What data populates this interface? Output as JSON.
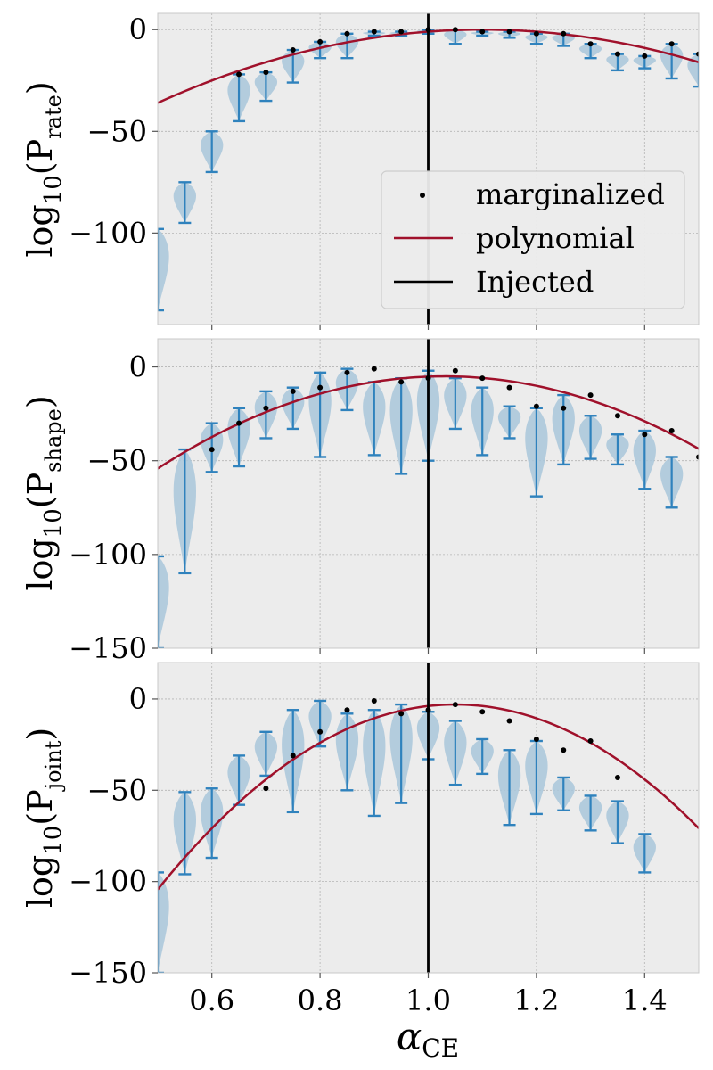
{
  "chart_data": {
    "type": "violin",
    "xlabel": "α",
    "xlabel_sub": "CE",
    "xlim": [
      0.5,
      1.5
    ],
    "xticks": [
      0.6,
      0.8,
      1.0,
      1.2,
      1.4
    ],
    "xtick_labels": [
      "0.6",
      "0.8",
      "1.0",
      "1.2",
      "1.4"
    ],
    "injected_x": 1.0,
    "x": [
      0.5,
      0.55,
      0.6,
      0.65,
      0.7,
      0.75,
      0.8,
      0.85,
      0.9,
      0.95,
      1.0,
      1.05,
      1.1,
      1.15,
      1.2,
      1.25,
      1.3,
      1.35,
      1.4,
      1.45,
      1.5
    ],
    "colors": {
      "violin_fill": "#a9c7db",
      "violin_line": "#2f82bd",
      "polynomial": "#a0112b",
      "injected": "#000000",
      "marker": "#000000",
      "panel_bg": "#ececec",
      "grid": "#b4b4b4"
    },
    "legend": {
      "position": "lower right of top panel",
      "entries": [
        {
          "label": "marginalized",
          "kind": "marker"
        },
        {
          "label": "polynomial",
          "kind": "line"
        },
        {
          "label": "Injected",
          "kind": "line"
        }
      ]
    },
    "panels": [
      {
        "ylabel": "log",
        "ylabel_base": "10",
        "ylabel_var": "P",
        "ylabel_var_sub": "rate",
        "ylim": [
          -145,
          8
        ],
        "yticks": [
          0,
          -50,
          -100
        ],
        "ytick_labels": [
          "0",
          "−50",
          "−100"
        ],
        "polynomial": {
          "peak_x": 1.1,
          "peak_y": 0,
          "curvature": 100
        },
        "marginalized": [
          null,
          null,
          null,
          -22,
          -21,
          -10,
          -6,
          -2,
          -1,
          -1,
          0,
          0,
          -1,
          -1,
          -2,
          -2,
          -7,
          -12,
          -13,
          -7,
          -12
        ],
        "violins": [
          {
            "min": -138,
            "max": -98,
            "width": 0.025
          },
          {
            "min": -95,
            "max": -75,
            "width": 0.025
          },
          {
            "min": -70,
            "max": -50,
            "width": 0.025
          },
          {
            "min": -45,
            "max": -22,
            "width": 0.025
          },
          {
            "min": -35,
            "max": -21,
            "width": 0.025
          },
          {
            "min": -26,
            "max": -10,
            "width": 0.025
          },
          {
            "min": -14,
            "max": -6,
            "width": 0.025
          },
          {
            "min": -14,
            "max": -2,
            "width": 0.025
          },
          {
            "min": -3,
            "max": -1,
            "width": 0.025
          },
          {
            "min": -3,
            "max": -1,
            "width": 0.025
          },
          {
            "min": -2,
            "max": 0,
            "width": 0.025
          },
          {
            "min": -7,
            "max": 0,
            "width": 0.025
          },
          {
            "min": -3,
            "max": -1,
            "width": 0.025
          },
          {
            "min": -4,
            "max": -1,
            "width": 0.025
          },
          {
            "min": -7,
            "max": -2,
            "width": 0.025
          },
          {
            "min": -8,
            "max": -2,
            "width": 0.025
          },
          {
            "min": -14,
            "max": -7,
            "width": 0.025
          },
          {
            "min": -20,
            "max": -12,
            "width": 0.025
          },
          {
            "min": -19,
            "max": -13,
            "width": 0.025
          },
          {
            "min": -24,
            "max": -7,
            "width": 0.025
          },
          {
            "min": -28,
            "max": -12,
            "width": 0.025
          }
        ]
      },
      {
        "ylabel": "log",
        "ylabel_base": "10",
        "ylabel_var": "P",
        "ylabel_var_sub": "shape",
        "ylim": [
          -150,
          15
        ],
        "yticks": [
          0,
          -50,
          -100,
          -150
        ],
        "ytick_labels": [
          "0",
          "−50",
          "−100",
          "−150"
        ],
        "polynomial": {
          "peak_x": 1.03,
          "peak_y": -5,
          "curvature": 175
        },
        "marginalized": [
          null,
          null,
          -44,
          -30,
          -22,
          -13,
          -11,
          -3,
          -1,
          -8,
          -6,
          -2,
          -6,
          -11,
          -21,
          -22,
          -15,
          -26,
          -36,
          -34,
          -48
        ],
        "violins": [
          {
            "min": -150,
            "max": -101,
            "width": 0.025
          },
          {
            "min": -110,
            "max": -44,
            "width": 0.025
          },
          {
            "min": -56,
            "max": -30,
            "width": 0.025
          },
          {
            "min": -53,
            "max": -22,
            "width": 0.025
          },
          {
            "min": -38,
            "max": -13,
            "width": 0.025
          },
          {
            "min": -33,
            "max": -11,
            "width": 0.025
          },
          {
            "min": -48,
            "max": -3,
            "width": 0.025
          },
          {
            "min": -23,
            "max": -1,
            "width": 0.025
          },
          {
            "min": -47,
            "max": -8,
            "width": 0.025
          },
          {
            "min": -57,
            "max": -6,
            "width": 0.025
          },
          {
            "min": -50,
            "max": -2,
            "width": 0.025
          },
          {
            "min": -33,
            "max": -6,
            "width": 0.025
          },
          {
            "min": -47,
            "max": -11,
            "width": 0.025
          },
          {
            "min": -38,
            "max": -21,
            "width": 0.025
          },
          {
            "min": -69,
            "max": -22,
            "width": 0.025
          },
          {
            "min": -52,
            "max": -15,
            "width": 0.025
          },
          {
            "min": -49,
            "max": -26,
            "width": 0.025
          },
          {
            "min": -52,
            "max": -36,
            "width": 0.025
          },
          {
            "min": -65,
            "max": -34,
            "width": 0.025
          },
          {
            "min": -75,
            "max": -48,
            "width": 0.025
          }
        ]
      },
      {
        "ylabel": "log",
        "ylabel_base": "10",
        "ylabel_var": "P",
        "ylabel_var_sub": "joint",
        "ylim": [
          -150,
          20
        ],
        "yticks": [
          0,
          -50,
          -100,
          -150
        ],
        "ytick_labels": [
          "0",
          "−50",
          "−100",
          "−150"
        ],
        "polynomial": {
          "peak_x": 1.05,
          "peak_y": -3,
          "curvature": 335
        },
        "marginalized": [
          null,
          null,
          null,
          null,
          -49,
          -31,
          -18,
          -6,
          -1,
          -8,
          -6,
          -3,
          -7,
          -12,
          -22,
          -28,
          -23,
          -43,
          null,
          null,
          null
        ],
        "violins": [
          {
            "min": -150,
            "max": -95,
            "width": 0.025
          },
          {
            "min": -96,
            "max": -51,
            "width": 0.025
          },
          {
            "min": -87,
            "max": -49,
            "width": 0.025
          },
          {
            "min": -58,
            "max": -31,
            "width": 0.025
          },
          {
            "min": -42,
            "max": -18,
            "width": 0.025
          },
          {
            "min": -62,
            "max": -6,
            "width": 0.025
          },
          {
            "min": -26,
            "max": -1,
            "width": 0.025
          },
          {
            "min": -50,
            "max": -8,
            "width": 0.025
          },
          {
            "min": -64,
            "max": -6,
            "width": 0.025
          },
          {
            "min": -57,
            "max": -3,
            "width": 0.025
          },
          {
            "min": -33,
            "max": -7,
            "width": 0.025
          },
          {
            "min": -47,
            "max": -12,
            "width": 0.025
          },
          {
            "min": -41,
            "max": -22,
            "width": 0.025
          },
          {
            "min": -69,
            "max": -28,
            "width": 0.025
          },
          {
            "min": -63,
            "max": -23,
            "width": 0.025
          },
          {
            "min": -61,
            "max": -43,
            "width": 0.025
          },
          {
            "min": -72,
            "max": -53,
            "width": 0.025
          },
          {
            "min": -79,
            "max": -56,
            "width": 0.025
          },
          {
            "min": -95,
            "max": -74,
            "width": 0.025
          }
        ]
      }
    ]
  }
}
